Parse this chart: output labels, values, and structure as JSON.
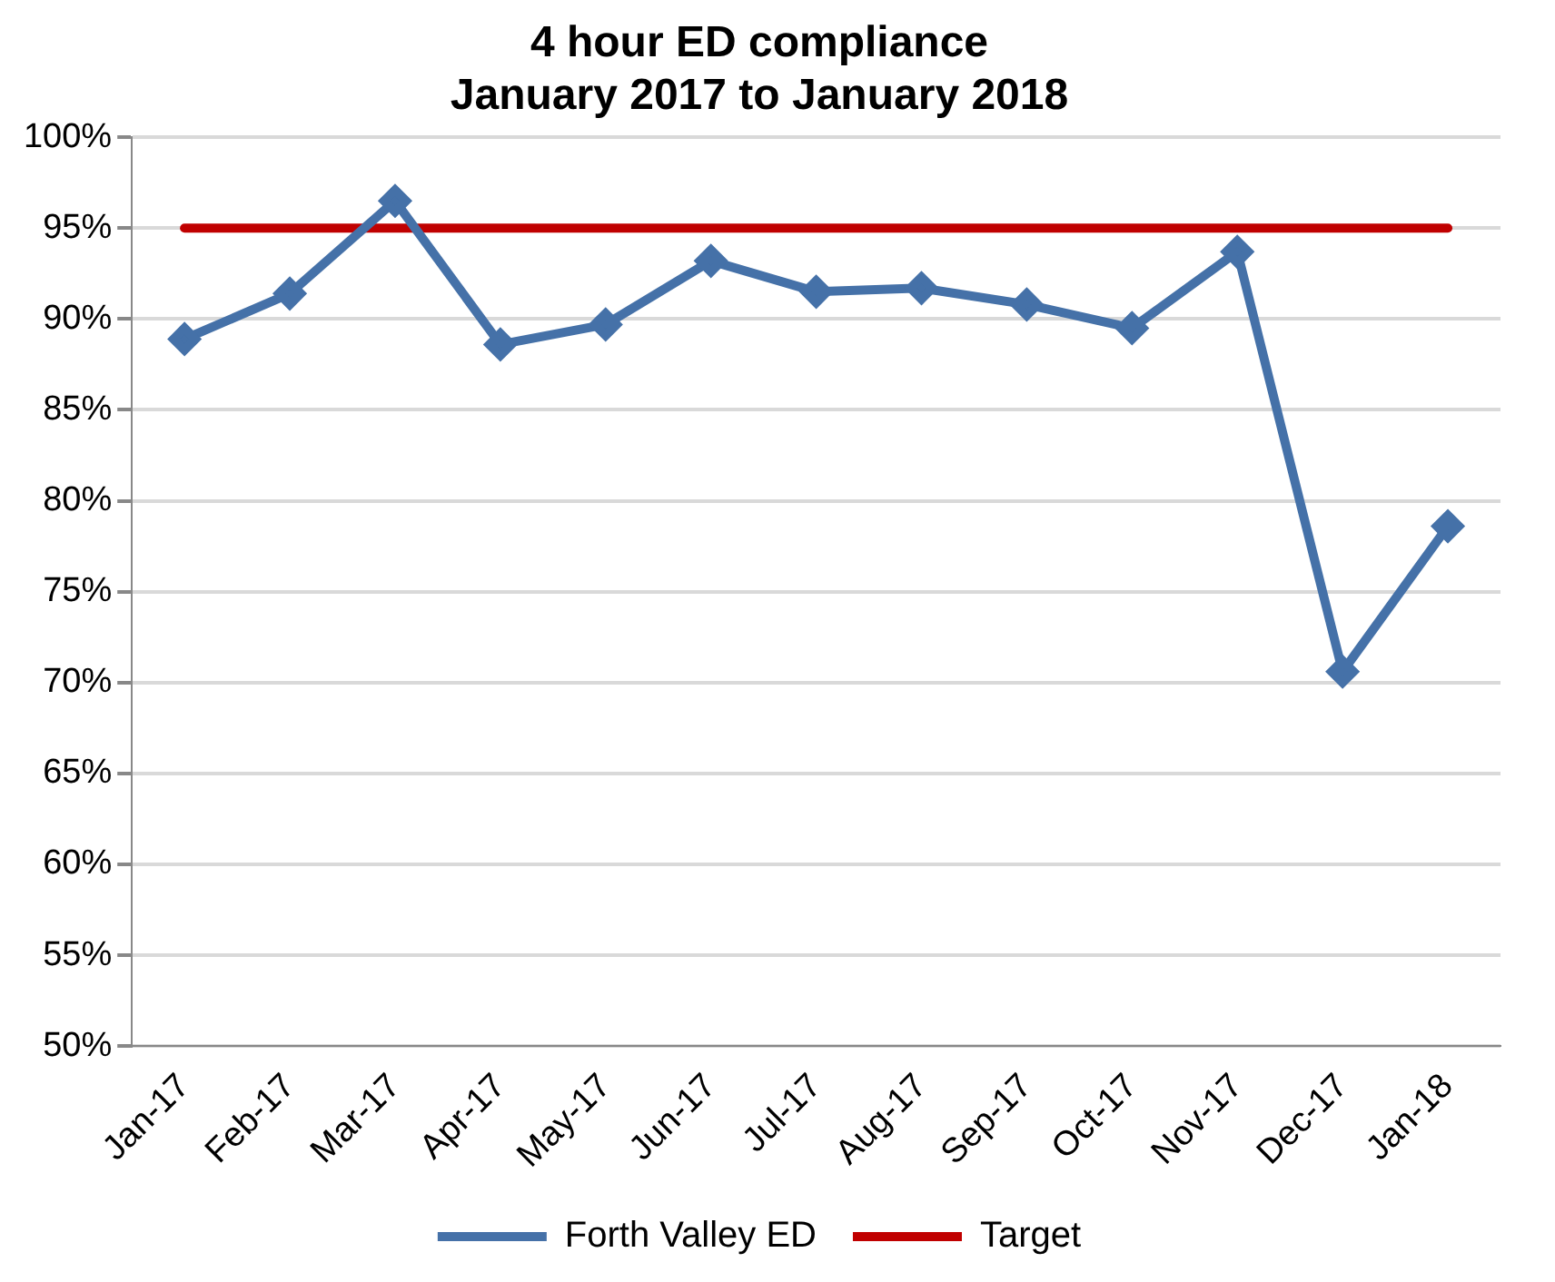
{
  "chart_data": {
    "type": "line",
    "title": "4 hour ED compliance\nJanuary 2017 to January 2018",
    "categories": [
      "Jan-17",
      "Feb-17",
      "Mar-17",
      "Apr-17",
      "May-17",
      "Jun-17",
      "Jul-17",
      "Aug-17",
      "Sep-17",
      "Oct-17",
      "Nov-17",
      "Dec-17",
      "Jan-18"
    ],
    "series": [
      {
        "name": "Forth Valley ED",
        "color": "#4571a8",
        "marker": "diamond",
        "values": [
          88.9,
          91.4,
          96.5,
          88.6,
          89.7,
          93.2,
          91.5,
          91.7,
          90.8,
          89.5,
          93.7,
          70.6,
          78.6
        ]
      },
      {
        "name": "Target",
        "color": "#c00000",
        "marker": "none",
        "values": [
          95,
          95,
          95,
          95,
          95,
          95,
          95,
          95,
          95,
          95,
          95,
          95,
          95
        ]
      }
    ],
    "ylim": [
      50,
      100
    ],
    "yticks": [
      {
        "value": 50,
        "label": "50%"
      },
      {
        "value": 55,
        "label": "55%"
      },
      {
        "value": 60,
        "label": "60%"
      },
      {
        "value": 65,
        "label": "65%"
      },
      {
        "value": 70,
        "label": "70%"
      },
      {
        "value": 75,
        "label": "75%"
      },
      {
        "value": 80,
        "label": "80%"
      },
      {
        "value": 85,
        "label": "85%"
      },
      {
        "value": 90,
        "label": "90%"
      },
      {
        "value": 95,
        "label": "95%"
      },
      {
        "value": 100,
        "label": "100%"
      }
    ],
    "grid": "y",
    "legend": "bottom",
    "line_style": "solid"
  }
}
